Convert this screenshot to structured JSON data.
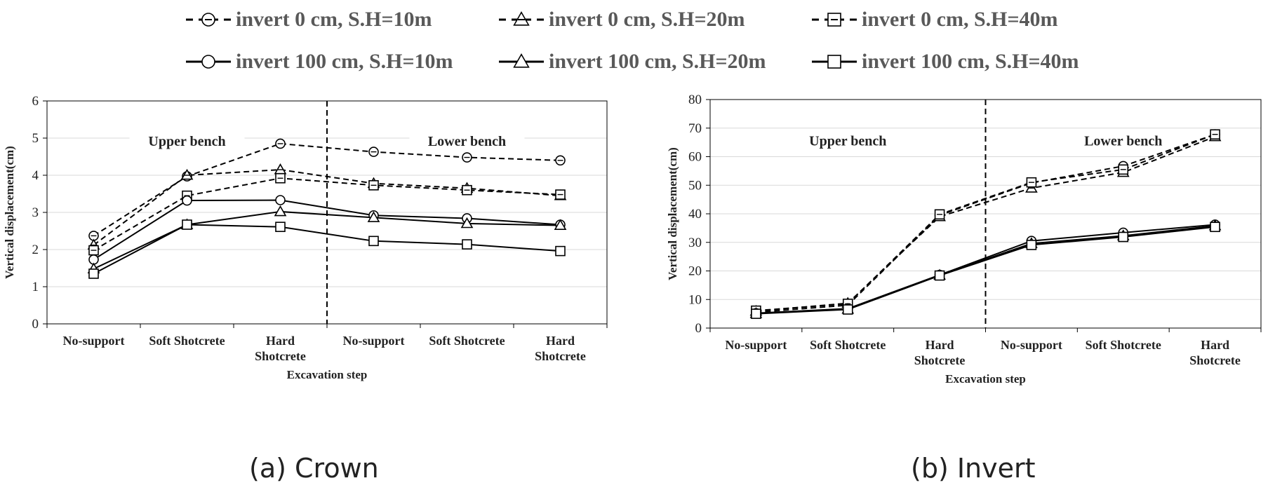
{
  "legend": [
    {
      "label": "invert 0 cm, S.H=10m",
      "marker": "circle",
      "dash": "dashed"
    },
    {
      "label": "invert 0 cm, S.H=20m",
      "marker": "triangle",
      "dash": "dashed"
    },
    {
      "label": "invert 0 cm, S.H=40m",
      "marker": "square",
      "dash": "dashed"
    },
    {
      "label": "invert 100 cm, S.H=10m",
      "marker": "circle",
      "dash": "solid"
    },
    {
      "label": "invert 100 cm, S.H=20m",
      "marker": "triangle",
      "dash": "solid"
    },
    {
      "label": "invert 100 cm, S.H=40m",
      "marker": "square",
      "dash": "solid"
    }
  ],
  "captions": {
    "a": "(a) Crown",
    "b": "(b) Invert"
  },
  "colors": {
    "line": "#000000",
    "grid": "#d9d9d9",
    "legend_text": "#595959"
  },
  "chart_data": [
    {
      "type": "line",
      "categories": [
        "No-support",
        "Soft Shotcrete",
        "Hard|Shotcrete",
        "No-support",
        "Soft Shotcrete",
        "Hard|Shotcrete"
      ],
      "xlabel": "Excavation step",
      "ylabel": "Vertical displacement(cm)",
      "ylim": [
        0,
        6
      ],
      "yticks": [
        0,
        1,
        2,
        3,
        4,
        5,
        6
      ],
      "grid": true,
      "divider_after_category": 3,
      "regions": [
        "Upper bench",
        "Lower bench"
      ],
      "series": [
        {
          "name": "invert 0 cm, S.H=10m",
          "marker": "circle",
          "dash": "dashed",
          "values": [
            2.37,
            3.97,
            4.85,
            4.63,
            4.48,
            4.4
          ]
        },
        {
          "name": "invert 0 cm, S.H=20m",
          "marker": "triangle",
          "dash": "dashed",
          "values": [
            2.12,
            4.0,
            4.15,
            3.78,
            3.65,
            3.45
          ]
        },
        {
          "name": "invert 0 cm, S.H=40m",
          "marker": "square",
          "dash": "dashed",
          "values": [
            1.98,
            3.45,
            3.92,
            3.73,
            3.6,
            3.48
          ]
        },
        {
          "name": "invert 100 cm, S.H=10m",
          "marker": "circle",
          "dash": "solid",
          "values": [
            1.73,
            3.32,
            3.33,
            2.92,
            2.84,
            2.67
          ]
        },
        {
          "name": "invert 100 cm, S.H=20m",
          "marker": "triangle",
          "dash": "solid",
          "values": [
            1.48,
            2.67,
            3.02,
            2.86,
            2.7,
            2.65
          ]
        },
        {
          "name": "invert 100 cm, S.H=40m",
          "marker": "square",
          "dash": "solid",
          "values": [
            1.35,
            2.67,
            2.61,
            2.23,
            2.14,
            1.96
          ]
        }
      ]
    },
    {
      "type": "line",
      "categories": [
        "No-support",
        "Soft Shotcrete",
        "Hard|Shotcrete",
        "No-support",
        "Soft Shotcrete",
        "Hard|Shotcrete"
      ],
      "xlabel": "Excavation step",
      "ylabel": "Vertical displacement(cm)",
      "ylim": [
        0,
        80
      ],
      "yticks": [
        0,
        10,
        20,
        30,
        40,
        50,
        60,
        70,
        80
      ],
      "grid": true,
      "divider_after_category": 3,
      "regions": [
        "Upper bench",
        "Lower bench"
      ],
      "series": [
        {
          "name": "invert 0 cm, S.H=10m",
          "marker": "circle",
          "dash": "dashed",
          "values": [
            5.5,
            8.0,
            39.5,
            50.8,
            56.7,
            67.8
          ]
        },
        {
          "name": "invert 0 cm, S.H=20m",
          "marker": "triangle",
          "dash": "dashed",
          "values": [
            5.9,
            8.7,
            39.0,
            49.0,
            54.5,
            67.0
          ]
        },
        {
          "name": "invert 0 cm, S.H=40m",
          "marker": "square",
          "dash": "dashed",
          "values": [
            6.1,
            8.5,
            39.8,
            51.0,
            55.5,
            67.8
          ]
        },
        {
          "name": "invert 100 cm, S.H=10m",
          "marker": "circle",
          "dash": "solid",
          "values": [
            5.2,
            6.8,
            18.6,
            30.5,
            33.4,
            36.2
          ]
        },
        {
          "name": "invert 100 cm, S.H=20m",
          "marker": "triangle",
          "dash": "solid",
          "values": [
            5.1,
            6.6,
            18.5,
            29.6,
            32.3,
            35.8
          ]
        },
        {
          "name": "invert 100 cm, S.H=40m",
          "marker": "square",
          "dash": "solid",
          "values": [
            5.0,
            6.5,
            18.4,
            29.1,
            31.9,
            35.4
          ]
        }
      ]
    }
  ]
}
